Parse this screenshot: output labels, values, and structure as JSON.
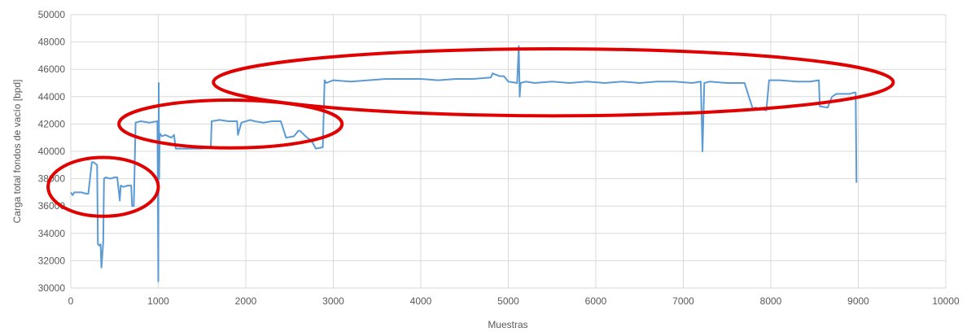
{
  "chart_data": {
    "type": "line",
    "title": "",
    "xlabel": "Muestras",
    "ylabel": "Carga total fondos de vacío [bpd]",
    "xlim": [
      0,
      10000
    ],
    "ylim": [
      30000,
      50000
    ],
    "xticks": [
      0,
      1000,
      2000,
      3000,
      4000,
      5000,
      6000,
      7000,
      8000,
      9000,
      10000
    ],
    "yticks": [
      30000,
      32000,
      34000,
      36000,
      38000,
      40000,
      42000,
      44000,
      46000,
      48000,
      50000
    ],
    "grid": true,
    "legend": "none",
    "colors": {
      "series": "#5b9bd5",
      "highlight": "#e00000",
      "grid": "#d9d9d9"
    },
    "series": [
      {
        "x": [
          0,
          20,
          40,
          120,
          180,
          200,
          240,
          260,
          300,
          310,
          330,
          340,
          350,
          370,
          380,
          400,
          450,
          500,
          530,
          560,
          570,
          600,
          650,
          690,
          700,
          720,
          740,
          800,
          900,
          990,
          1000,
          1005,
          1010,
          1015,
          1020,
          1040,
          1080,
          1150,
          1180,
          1200,
          1300,
          1400,
          1500,
          1600,
          1610,
          1700,
          1800,
          1900,
          1910,
          1950,
          2050,
          2100,
          2200,
          2300,
          2400,
          2450,
          2460,
          2550,
          2600,
          2620,
          2700,
          2750,
          2800,
          2880,
          2900,
          2920,
          3000,
          3200,
          3400,
          3600,
          3800,
          4000,
          4200,
          4400,
          4600,
          4800,
          4820,
          4900,
          4950,
          5000,
          5100,
          5120,
          5130,
          5140,
          5200,
          5300,
          5500,
          5700,
          5900,
          6100,
          6300,
          6500,
          6700,
          6900,
          7100,
          7200,
          7220,
          7240,
          7300,
          7500,
          7700,
          7800,
          7820,
          7950,
          7980,
          8100,
          8300,
          8450,
          8550,
          8560,
          8650,
          8700,
          8750,
          8800,
          8900,
          8950,
          8970,
          8980
        ],
        "y": [
          37000,
          36800,
          37000,
          37000,
          36900,
          36900,
          39200,
          39200,
          39000,
          33200,
          33100,
          33200,
          31500,
          33300,
          38000,
          38100,
          38000,
          38100,
          38100,
          36400,
          37500,
          37400,
          37500,
          37500,
          36000,
          36000,
          42100,
          42200,
          42100,
          42200,
          30500,
          45000,
          38000,
          41000,
          41300,
          41100,
          41200,
          41000,
          41200,
          40200,
          40200,
          40200,
          40200,
          40300,
          42200,
          42300,
          42200,
          42200,
          41200,
          42100,
          42300,
          42200,
          42100,
          42200,
          42200,
          41200,
          41000,
          41100,
          41500,
          41500,
          41000,
          40800,
          40200,
          40300,
          45200,
          45000,
          45200,
          45100,
          45200,
          45300,
          45300,
          45300,
          45200,
          45300,
          45300,
          45400,
          45700,
          45500,
          45500,
          45100,
          45000,
          47700,
          44000,
          45000,
          45100,
          45000,
          45100,
          45000,
          45100,
          45000,
          45100,
          45000,
          45100,
          45100,
          45000,
          45100,
          40000,
          45000,
          45100,
          45000,
          45000,
          43000,
          43200,
          43000,
          45200,
          45200,
          45100,
          45100,
          45200,
          43300,
          43200,
          44000,
          44200,
          44200,
          44200,
          44300,
          44300,
          37700
        ]
      }
    ],
    "annotations": [
      {
        "shape": "ellipse",
        "cx": 370,
        "cy": 37400,
        "rx": 630,
        "ry": 2150
      },
      {
        "shape": "ellipse",
        "cx": 1825,
        "cy": 42000,
        "rx": 1275,
        "ry": 1750
      },
      {
        "shape": "ellipse",
        "cx": 5515,
        "cy": 45050,
        "rx": 3885,
        "ry": 2450
      }
    ]
  }
}
